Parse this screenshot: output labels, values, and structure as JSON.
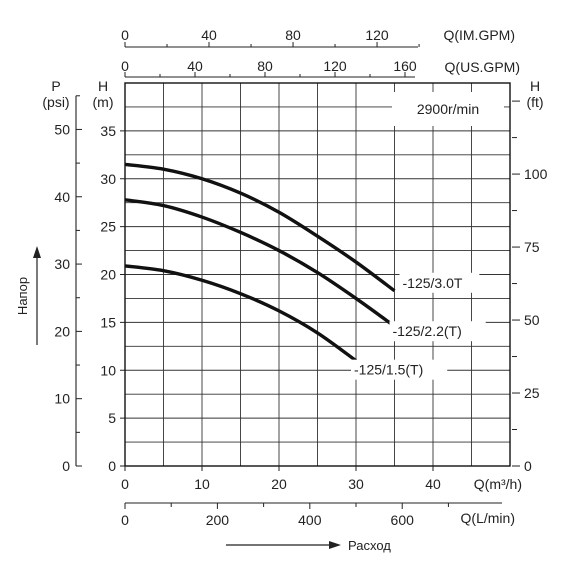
{
  "chart_data": {
    "type": "line",
    "title": "2900r/min",
    "x_axes": {
      "flow_m3h": {
        "label": "Q(m³/h)",
        "ticks": [
          0,
          10,
          20,
          30,
          40
        ],
        "range": [
          0,
          50
        ]
      },
      "flow_lmin": {
        "label": "Q(L/min)",
        "ticks": [
          0,
          200,
          400,
          600
        ],
        "range": [
          0,
          833.3
        ]
      },
      "flow_us_gpm": {
        "label": "Q(US.GPM)",
        "ticks": [
          0,
          40,
          80,
          120,
          160
        ],
        "range": [
          0,
          220
        ]
      },
      "flow_im_gpm": {
        "label": "Q(IM.GPM)",
        "ticks": [
          0,
          40,
          80,
          120
        ],
        "range": [
          0,
          183.3
        ]
      }
    },
    "y_axes": {
      "head_m": {
        "label_top": "H",
        "label_unit": "(m)",
        "ticks": [
          0,
          5,
          10,
          15,
          20,
          25,
          30,
          35
        ],
        "range": [
          0,
          40
        ]
      },
      "pressure_psi": {
        "label_top": "P",
        "label_unit": "(psi)",
        "ticks": [
          0,
          10,
          20,
          30,
          40,
          50
        ],
        "range": [
          0,
          56.9
        ]
      },
      "head_ft": {
        "label_top": "H",
        "label_unit": "(ft)",
        "ticks": [
          0,
          25,
          50,
          75,
          100
        ],
        "range": [
          0,
          131.2
        ]
      }
    },
    "series": [
      {
        "name": "-125/3.0T",
        "x": [
          0,
          5,
          10,
          15,
          20,
          25,
          30,
          35
        ],
        "y": [
          31.5,
          31.0,
          30.0,
          28.5,
          26.5,
          24.0,
          21.3,
          18.3
        ]
      },
      {
        "name": "-125/2.2(T)",
        "x": [
          0,
          5,
          10,
          15,
          20,
          25,
          30,
          35
        ],
        "y": [
          27.8,
          27.2,
          26.0,
          24.4,
          22.5,
          20.2,
          17.5,
          14.6
        ]
      },
      {
        "name": "-125/1.5(T)",
        "x": [
          0,
          5,
          10,
          15,
          20,
          25,
          30
        ],
        "y": [
          20.9,
          20.4,
          19.4,
          18.0,
          16.2,
          13.9,
          11.0
        ]
      }
    ],
    "grid": true,
    "side_labels": {
      "vertical": "Напор",
      "horizontal": "Расход"
    }
  }
}
